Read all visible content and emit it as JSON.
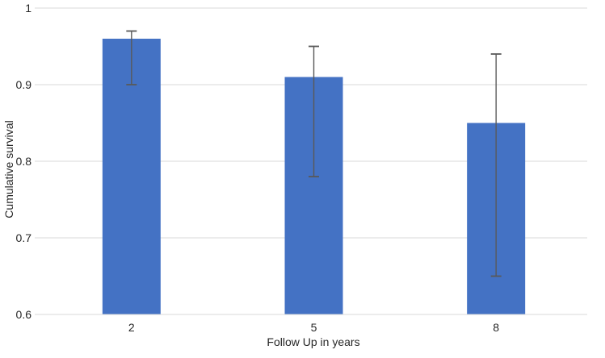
{
  "chart_data": {
    "type": "bar",
    "title": "",
    "categories": [
      "2",
      "5",
      "8"
    ],
    "series": [
      {
        "name": "Cumulative survival",
        "values": [
          0.96,
          0.91,
          0.85
        ]
      }
    ],
    "error_bars": [
      {
        "low": 0.9,
        "high": 0.97
      },
      {
        "low": 0.78,
        "high": 0.95
      },
      {
        "low": 0.65,
        "high": 0.94
      }
    ],
    "xlabel": "Follow Up in years",
    "ylabel": "Cumulative survival",
    "ylim": [
      0.6,
      1.0
    ],
    "ytick_values": [
      1.0,
      0.9,
      0.8,
      0.7,
      0.6
    ],
    "ytick_labels": [
      "1",
      "0.9",
      "0.8",
      "0.7",
      "0.6"
    ],
    "grid": true,
    "legend_position": "none",
    "colors": {
      "bar_fill": "#4472C4",
      "error_bar": "#595959",
      "gridline": "#D9D9D9",
      "axis_line": "#D9D9D9",
      "tick_text": "#262626",
      "background": "#ffffff"
    }
  }
}
